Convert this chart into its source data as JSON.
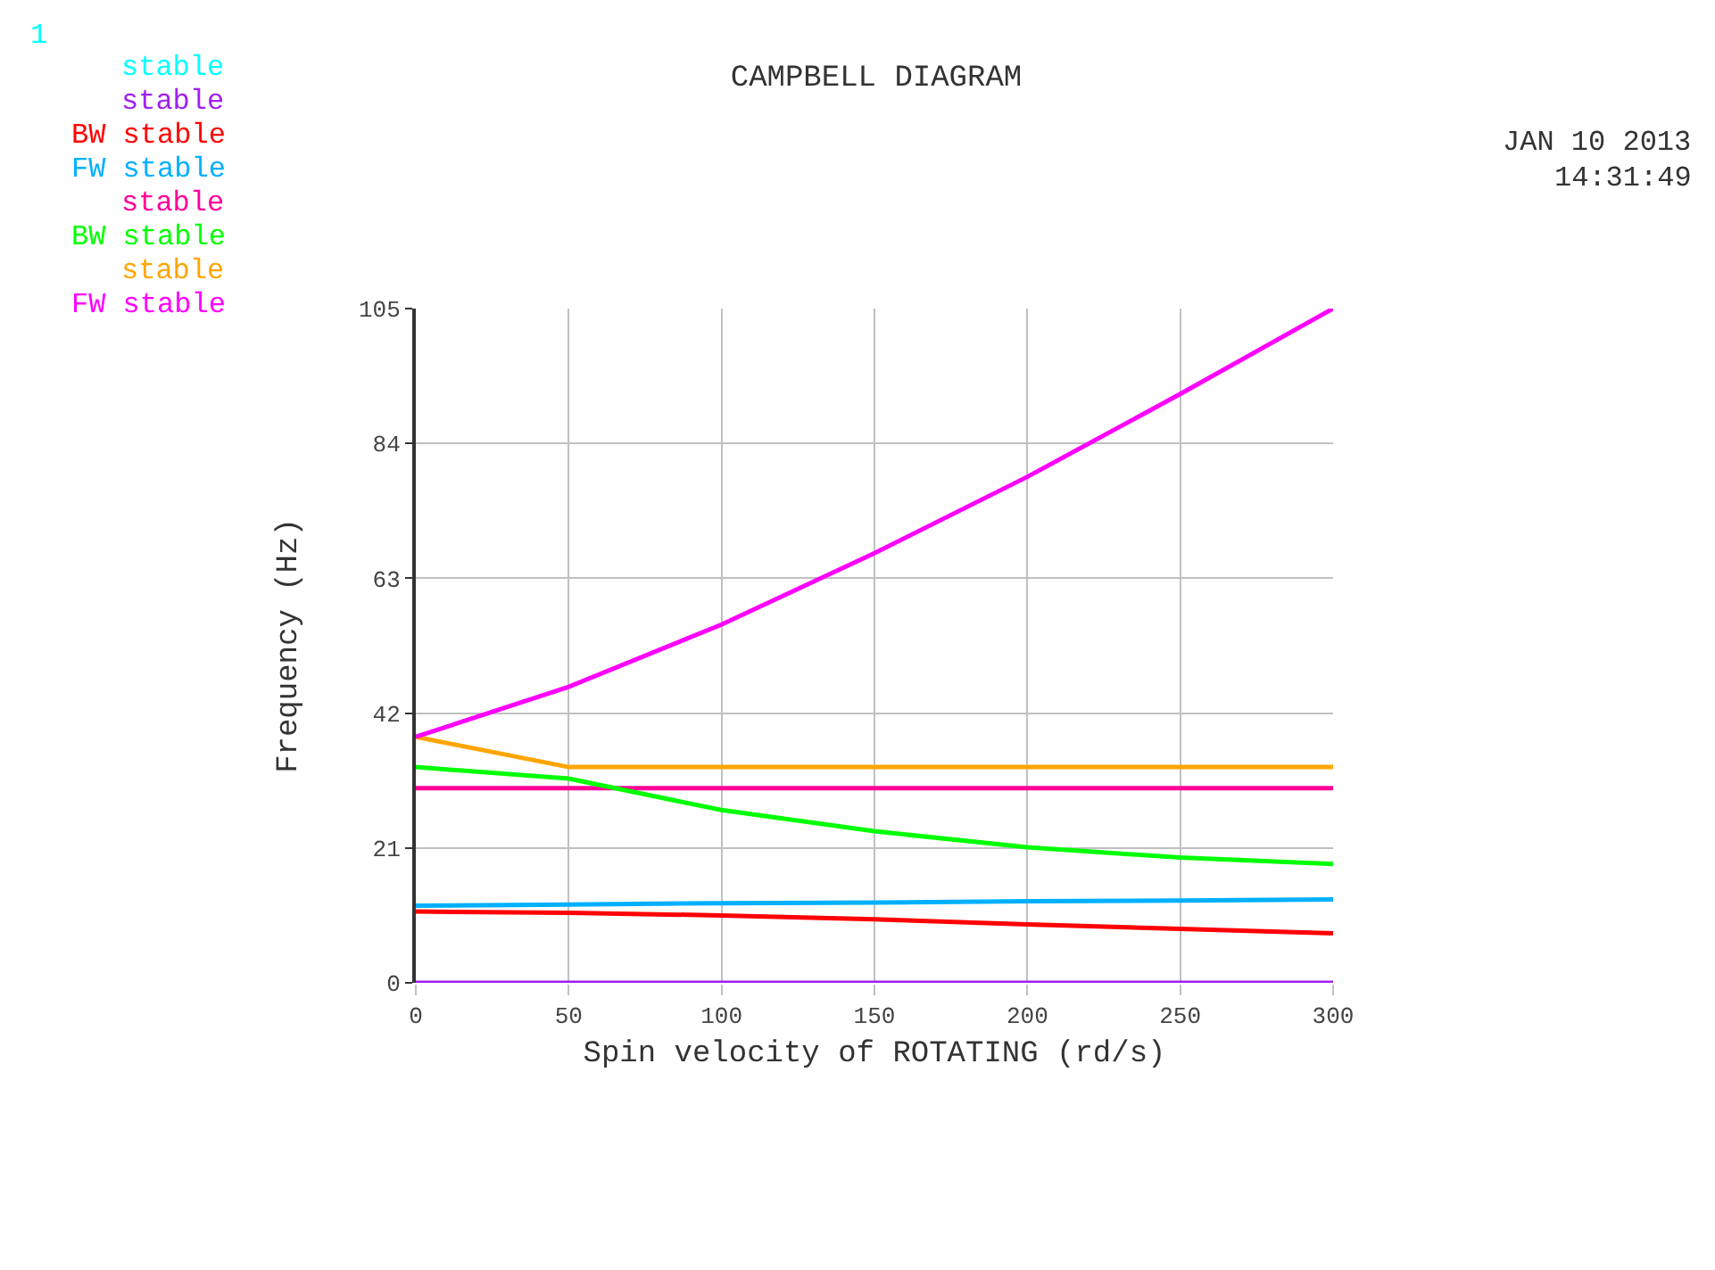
{
  "chart_data": {
    "type": "line",
    "title": "CAMPBELL DIAGRAM",
    "xlabel": "Spin velocity of ROTATING (rd/s)",
    "ylabel": "Frequency (Hz)",
    "annotations": [
      "1",
      "JAN 10 2013",
      "14:31:49"
    ],
    "x": [
      0,
      50,
      100,
      150,
      200,
      250,
      300
    ],
    "series": [
      {
        "name": "stable",
        "color": "#00ffff",
        "values": [
          null,
          null,
          null,
          null,
          null,
          null,
          null
        ]
      },
      {
        "name": "stable",
        "color": "#a020f0",
        "values": [
          0,
          0,
          0,
          0,
          0,
          0,
          0
        ]
      },
      {
        "name": "BW stable",
        "color": "#ff0000",
        "values": [
          11.1,
          10.9,
          10.5,
          9.9,
          9.1,
          8.4,
          7.7
        ]
      },
      {
        "name": "FW stable",
        "color": "#00b0ff",
        "values": [
          12.0,
          12.2,
          12.4,
          12.5,
          12.7,
          12.8,
          13.0
        ]
      },
      {
        "name": "stable",
        "color": "#ff0099",
        "values": [
          30.3,
          30.3,
          30.3,
          30.3,
          30.3,
          30.3,
          30.3
        ]
      },
      {
        "name": "BW stable",
        "color": "#00ff00",
        "values": [
          33.6,
          31.8,
          26.9,
          23.6,
          21.1,
          19.5,
          18.5
        ]
      },
      {
        "name": "stable",
        "color": "#ffa500",
        "values": [
          38.3,
          33.6,
          33.6,
          33.6,
          33.6,
          33.6,
          33.6
        ]
      },
      {
        "name": "FW stable",
        "color": "#ff00ff",
        "values": [
          38.3,
          46.1,
          55.8,
          66.9,
          78.8,
          91.7,
          105
        ]
      }
    ],
    "xlim": [
      0,
      300
    ],
    "xticks": [
      0,
      50,
      100,
      150,
      200,
      250,
      300
    ],
    "ylim": [
      0,
      105
    ],
    "yticks": [
      0,
      21,
      42,
      63,
      84,
      105
    ],
    "grid": true,
    "legend": "top left",
    "marker": "none",
    "line_style": "solid"
  }
}
